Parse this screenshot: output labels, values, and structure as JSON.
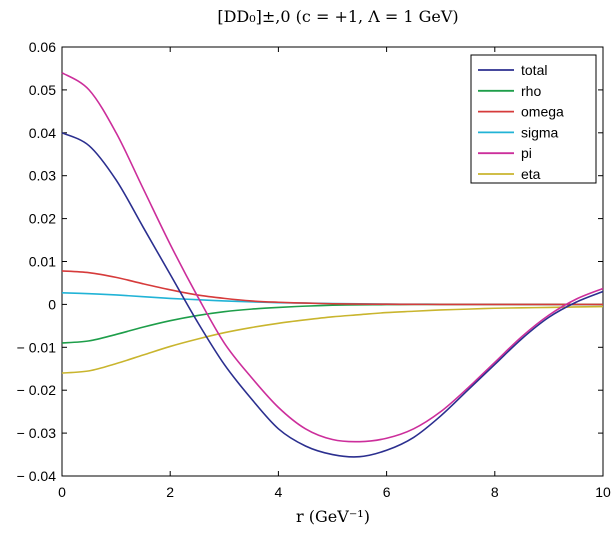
{
  "chart_data": {
    "type": "line",
    "title": "[DD₀]±,0 (c = +1, Λ = 1 GeV)",
    "xlabel": "r (GeV⁻¹)",
    "ylabel": "",
    "xlim": [
      0,
      10
    ],
    "ylim": [
      -0.04,
      0.06
    ],
    "xticks": [
      0,
      2,
      4,
      6,
      8,
      10
    ],
    "xtick_labels": [
      "0",
      "2",
      "4",
      "6",
      "8",
      "10"
    ],
    "yticks": [
      -0.04,
      -0.03,
      -0.02,
      -0.01,
      0,
      0.01,
      0.02,
      0.03,
      0.04,
      0.05,
      0.06
    ],
    "ytick_labels": [
      "− 0.04",
      "− 0.03",
      "− 0.02",
      "− 0.01",
      "0",
      "0.01",
      "0.02",
      "0.03",
      "0.04",
      "0.05",
      "0.06"
    ],
    "grid": false,
    "legend_position": "top-right",
    "x": [
      0,
      0.5,
      1,
      1.5,
      2,
      2.5,
      3,
      3.5,
      4,
      4.5,
      5,
      5.5,
      6,
      6.5,
      7,
      7.5,
      8,
      8.5,
      9,
      9.5,
      10
    ],
    "series": [
      {
        "name": "total",
        "color": "#2b2f8f",
        "values": [
          0.04,
          0.037,
          0.029,
          0.018,
          0.007,
          -0.004,
          -0.014,
          -0.022,
          -0.029,
          -0.033,
          -0.035,
          -0.0355,
          -0.034,
          -0.031,
          -0.026,
          -0.02,
          -0.014,
          -0.008,
          -0.003,
          0.0005,
          0.003
        ]
      },
      {
        "name": "rho",
        "color": "#1e9e4a",
        "values": [
          -0.009,
          -0.0085,
          -0.007,
          -0.0053,
          -0.0038,
          -0.0026,
          -0.0017,
          -0.0011,
          -0.0007,
          -0.0004,
          -0.0002,
          -0.0001,
          -5e-05,
          -2e-05,
          0,
          0,
          0,
          0,
          0,
          0,
          0
        ]
      },
      {
        "name": "omega",
        "color": "#d63b3b",
        "values": [
          0.0078,
          0.0074,
          0.0063,
          0.0048,
          0.0034,
          0.0022,
          0.0014,
          0.0008,
          0.0005,
          0.0003,
          0.00015,
          8e-05,
          4e-05,
          2e-05,
          0,
          0,
          0,
          0,
          0,
          0,
          0
        ]
      },
      {
        "name": "sigma",
        "color": "#21b3d6",
        "values": [
          0.0027,
          0.0025,
          0.0022,
          0.0018,
          0.0014,
          0.0011,
          0.0008,
          0.0006,
          0.0004,
          0.0003,
          0.0002,
          0.00013,
          8e-05,
          5e-05,
          3e-05,
          2e-05,
          1e-05,
          0,
          0,
          0,
          0
        ]
      },
      {
        "name": "pi",
        "color": "#cc2e9b",
        "values": [
          0.054,
          0.05,
          0.04,
          0.027,
          0.014,
          0.002,
          -0.009,
          -0.017,
          -0.024,
          -0.029,
          -0.0315,
          -0.032,
          -0.0312,
          -0.029,
          -0.025,
          -0.0195,
          -0.0135,
          -0.0075,
          -0.0025,
          0.0012,
          0.0037
        ]
      },
      {
        "name": "eta",
        "color": "#c9b52e",
        "values": [
          -0.016,
          -0.0155,
          -0.0138,
          -0.0118,
          -0.0098,
          -0.0081,
          -0.0066,
          -0.0054,
          -0.0044,
          -0.0036,
          -0.0029,
          -0.0024,
          -0.0019,
          -0.0016,
          -0.0013,
          -0.0011,
          -0.0009,
          -0.0008,
          -0.0007,
          -0.0006,
          -0.0005
        ]
      }
    ]
  }
}
